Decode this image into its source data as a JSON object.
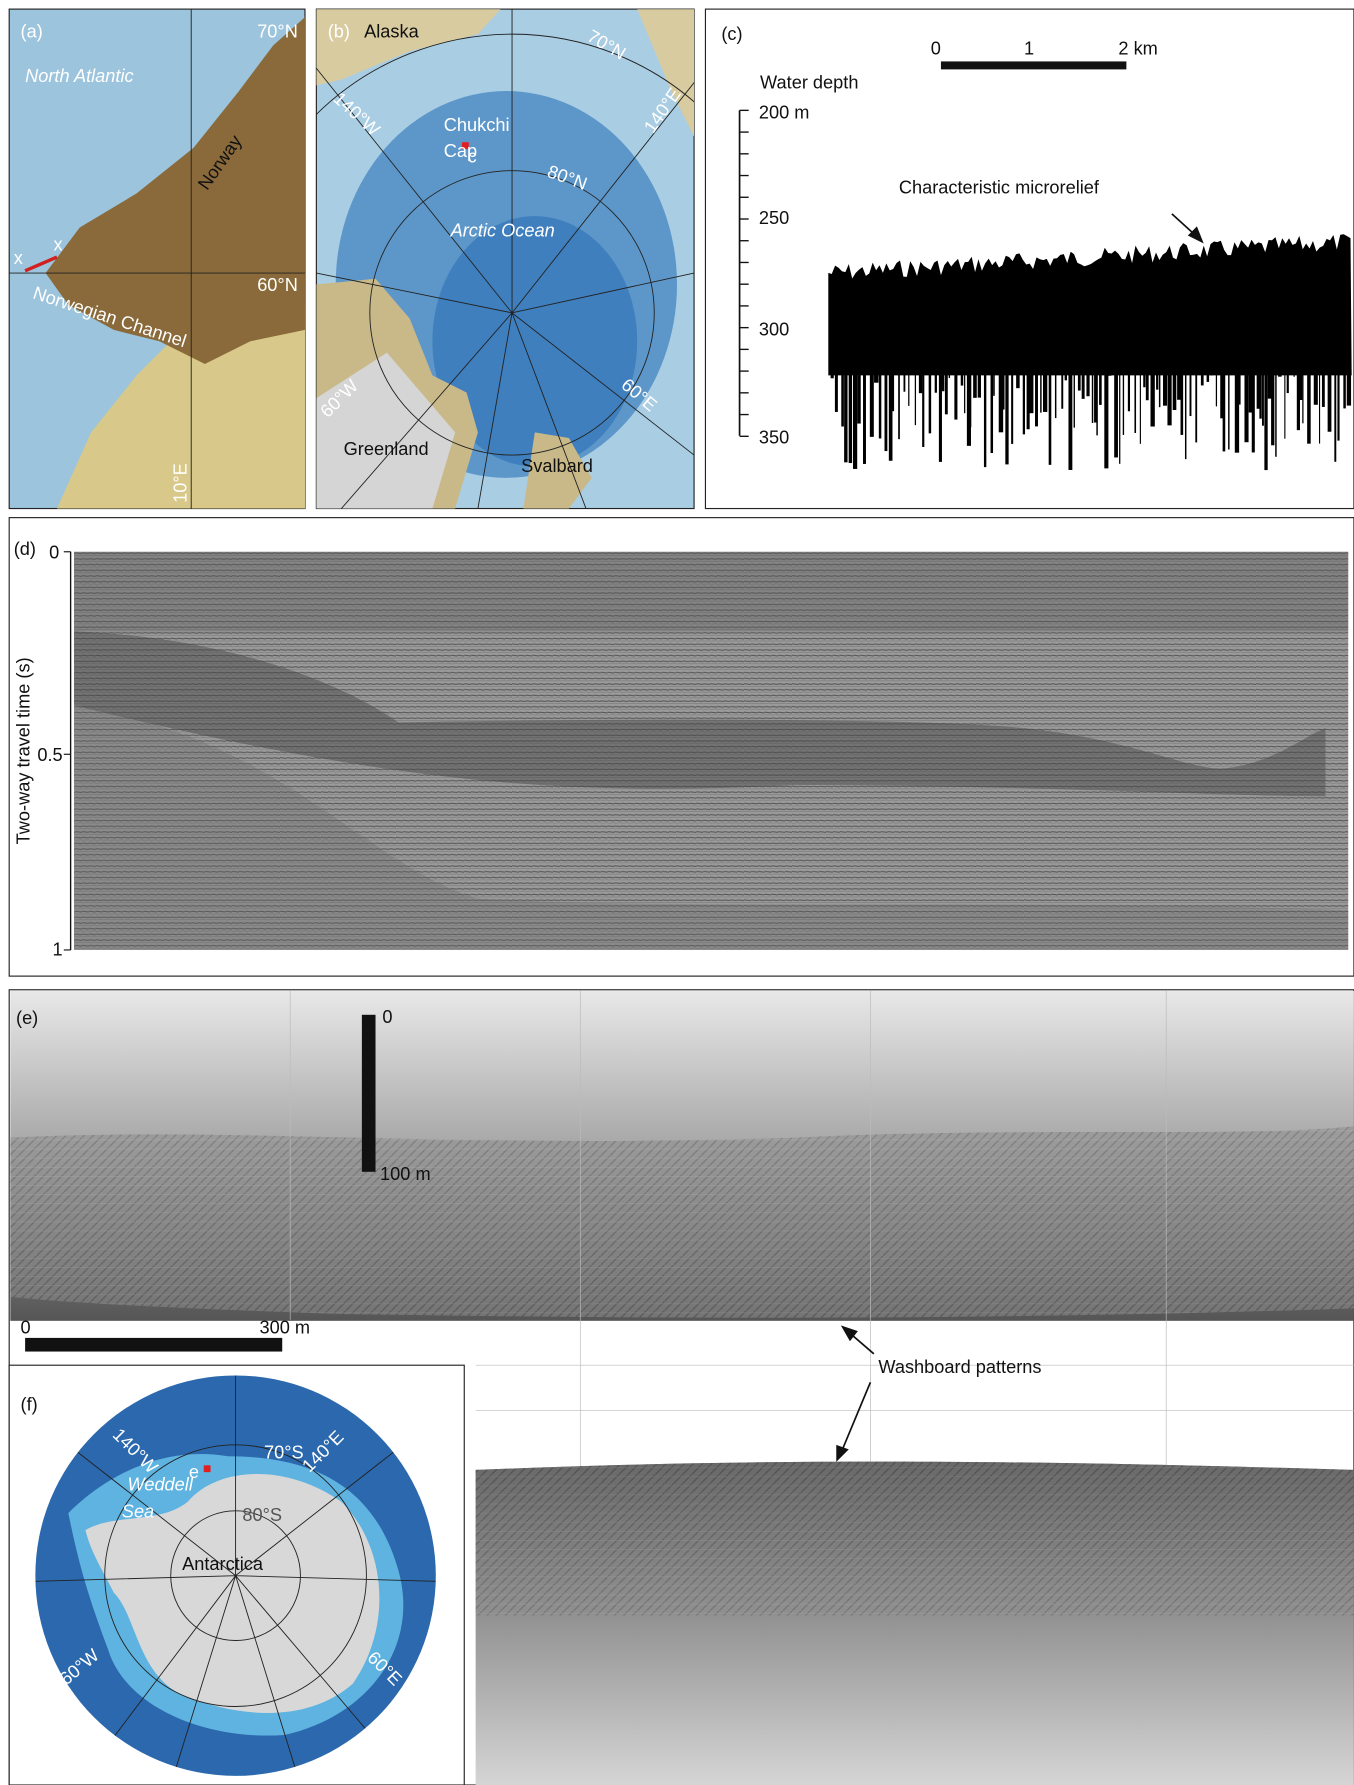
{
  "panel_a": {
    "label": "(a)",
    "lat_70": "70°N",
    "sea": "North Atlantic",
    "country": "Norway",
    "x_left": "x",
    "x_right": "x",
    "lat_60": "60°N",
    "channel": "Norwegian Channel",
    "lon_10": "10°E"
  },
  "panel_b": {
    "label": "(b)",
    "alaska": "Alaska",
    "lat_70": "70°N",
    "lon_140w": "140°W",
    "lon_140e": "140°E",
    "chukchi": "Chukchi",
    "cap": "Cap",
    "site": "c",
    "lat_80": "80°N",
    "ocean": "Arctic Ocean",
    "lon_60w": "60°W",
    "lon_60e": "60°E",
    "greenland": "Greenland",
    "svalbard": "Svalbard"
  },
  "panel_c": {
    "label": "(c)",
    "scale_ticks": [
      "0",
      "1",
      "2 km"
    ],
    "axis_title": "Water depth",
    "depth_ticks": [
      "200 m",
      "250",
      "300",
      "350"
    ],
    "annotation": "Characteristic microrelief"
  },
  "panel_d": {
    "label": "(d)",
    "axis_title": "Two-way travel time (s)",
    "ticks": [
      "0",
      "0.5",
      "1"
    ]
  },
  "panel_e": {
    "label": "(e)",
    "vscale_top": "0",
    "vscale_bottom": "100 m",
    "hscale_left": "0",
    "hscale_right": "300 m",
    "annotation": "Washboard patterns"
  },
  "panel_f": {
    "label": "(f)",
    "lon_140w": "140°W",
    "site": "e",
    "lat_70": "70°S",
    "lon_140e": "140°E",
    "sea_1": "Weddell",
    "sea_2": "Sea",
    "lat_80": "80°S",
    "continent": "Antarctica",
    "lon_60w": "60°W",
    "lon_60e": "60°E"
  }
}
